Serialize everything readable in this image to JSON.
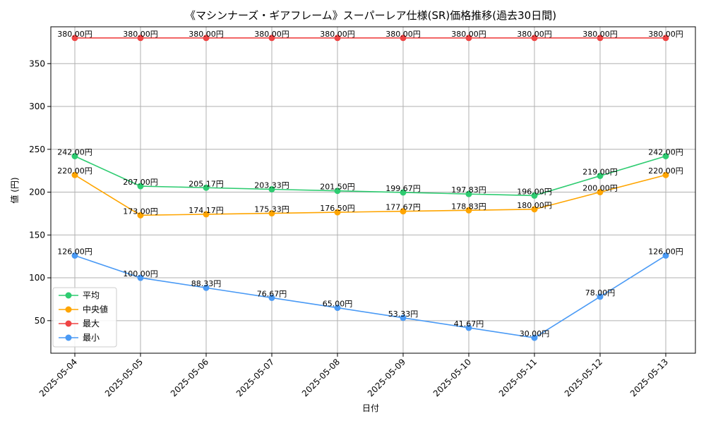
{
  "chart_data": {
    "type": "line",
    "title": "《マシンナーズ・ギアフレーム》スーパーレア仕様(SR)価格推移(過去30日間)",
    "xlabel": "日付",
    "ylabel": "値 (円)",
    "categories": [
      "2025-05-04",
      "2025-05-05",
      "2025-05-06",
      "2025-05-07",
      "2025-05-08",
      "2025-05-09",
      "2025-05-10",
      "2025-05-11",
      "2025-05-12",
      "2025-05-13"
    ],
    "ylim": [
      12,
      393
    ],
    "yticks": [
      50,
      100,
      150,
      200,
      250,
      300,
      350
    ],
    "grid": true,
    "legend_position": "lower-left",
    "value_suffix": "円",
    "series": [
      {
        "name": "平均",
        "color": "#2ecc71",
        "values": [
          242.0,
          207.0,
          205.17,
          203.33,
          201.5,
          199.67,
          197.83,
          196.0,
          219.0,
          242.0
        ]
      },
      {
        "name": "中央値",
        "color": "#ffa500",
        "values": [
          220.0,
          173.0,
          174.17,
          175.33,
          176.5,
          177.67,
          178.83,
          180.0,
          200.0,
          220.0
        ]
      },
      {
        "name": "最大",
        "color": "#ef4444",
        "values": [
          380.0,
          380.0,
          380.0,
          380.0,
          380.0,
          380.0,
          380.0,
          380.0,
          380.0,
          380.0
        ]
      },
      {
        "name": "最小",
        "color": "#4a9af5",
        "values": [
          126.0,
          100.0,
          88.33,
          76.67,
          65.0,
          53.33,
          41.67,
          30.0,
          78.0,
          126.0
        ]
      }
    ]
  }
}
